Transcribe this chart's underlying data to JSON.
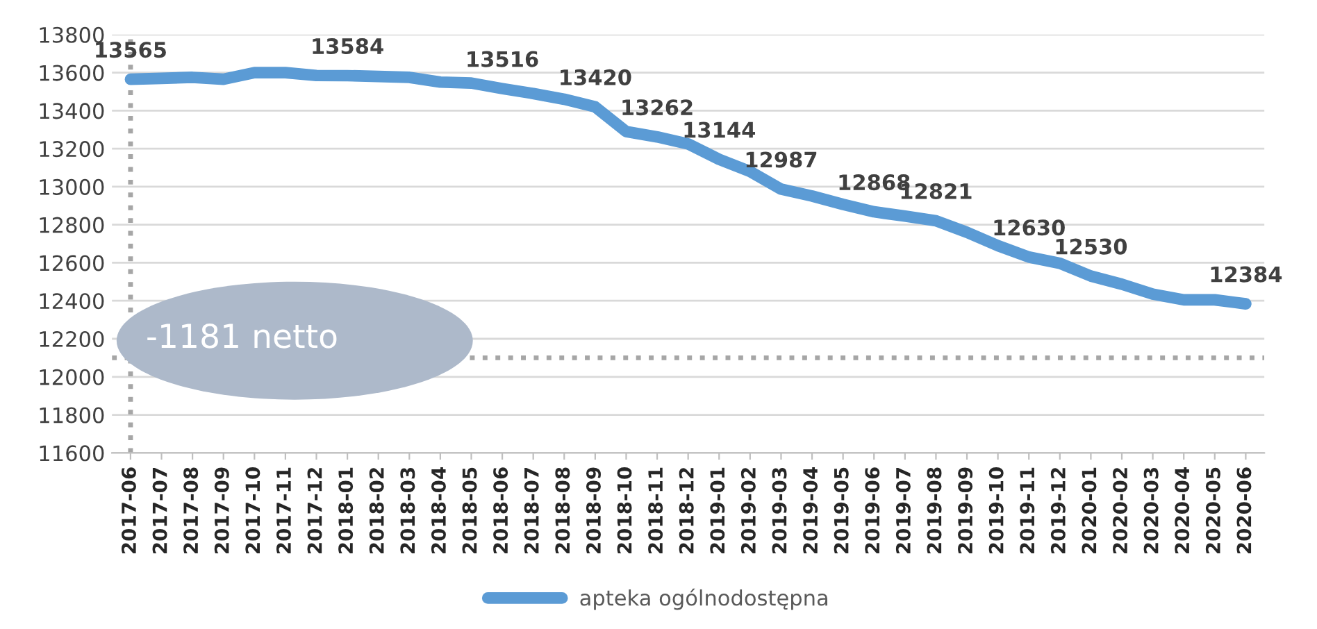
{
  "chart_data": {
    "type": "line",
    "categories": [
      "2017-06",
      "2017-07",
      "2017-08",
      "2017-09",
      "2017-10",
      "2017-11",
      "2017-12",
      "2018-01",
      "2018-02",
      "2018-03",
      "2018-04",
      "2018-05",
      "2018-06",
      "2018-07",
      "2018-08",
      "2018-09",
      "2018-10",
      "2018-11",
      "2018-12",
      "2019-01",
      "2019-02",
      "2019-03",
      "2019-04",
      "2019-05",
      "2019-06",
      "2019-07",
      "2019-08",
      "2019-09",
      "2019-10",
      "2019-11",
      "2019-12",
      "2020-01",
      "2020-02",
      "2020-03",
      "2020-04",
      "2020-05",
      "2020-06"
    ],
    "series": [
      {
        "name": "apteka ogólnodostępna",
        "color": "#5b9bd5",
        "values": [
          13565,
          13570,
          13575,
          13565,
          13600,
          13600,
          13585,
          13584,
          13580,
          13575,
          13550,
          13545,
          13516,
          13490,
          13460,
          13420,
          13290,
          13262,
          13225,
          13144,
          13080,
          12987,
          12951,
          12907,
          12868,
          12845,
          12821,
          12760,
          12690,
          12630,
          12597,
          12530,
          12487,
          12435,
          12405,
          12405,
          12384
        ],
        "value_labels": [
          "13565",
          null,
          null,
          null,
          null,
          null,
          null,
          "13584",
          null,
          null,
          null,
          null,
          "13516",
          null,
          null,
          "13420",
          null,
          "13262",
          null,
          "13144",
          null,
          "12987",
          null,
          null,
          "12868",
          null,
          "12821",
          null,
          null,
          "12630",
          null,
          "12530",
          null,
          null,
          null,
          null,
          "12384"
        ]
      }
    ],
    "ylim": [
      11600,
      13800
    ],
    "yticks": [
      11600,
      11800,
      12000,
      12200,
      12400,
      12600,
      12800,
      13000,
      13200,
      13400,
      13600,
      13800
    ],
    "grid": "y",
    "legend": "bottom",
    "marker": "none",
    "line_style": "solid",
    "ref_lines": [
      {
        "axis": "y",
        "value": 12100,
        "color": "#a6a6a6",
        "line_style": "dotted"
      },
      {
        "axis": "x",
        "value": "2017-06",
        "color": "#a6a6a6",
        "line_style": "dotted"
      }
    ],
    "annotations": [
      "-1181 netto"
    ]
  }
}
